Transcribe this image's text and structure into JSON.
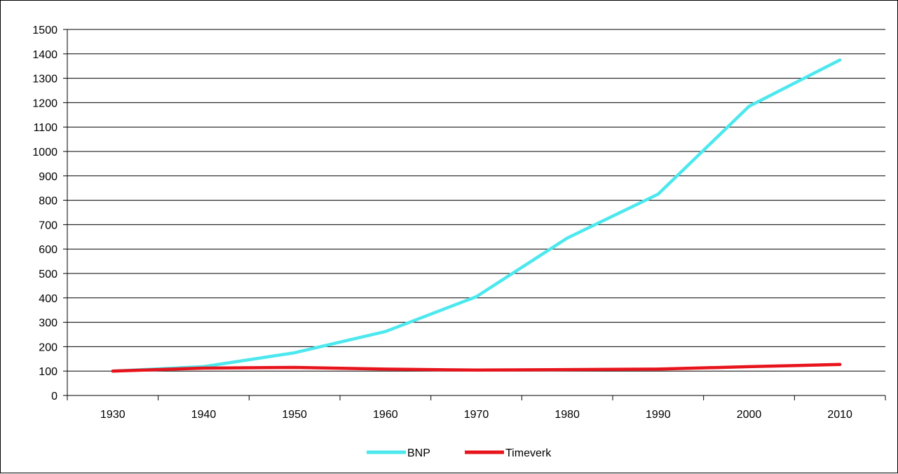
{
  "chart_data": {
    "type": "line",
    "title": "",
    "xlabel": "",
    "ylabel": "",
    "categories": [
      "1930",
      "1940",
      "1950",
      "1960",
      "1970",
      "1980",
      "1990",
      "2000",
      "2010"
    ],
    "ylim": [
      0,
      1500
    ],
    "yticks": [
      0,
      100,
      200,
      300,
      400,
      500,
      600,
      700,
      800,
      900,
      1000,
      1100,
      1200,
      1300,
      1400,
      1500
    ],
    "grid": true,
    "legend": "bottom",
    "series": [
      {
        "name": "BNP",
        "color": "#4de8ee",
        "values": [
          100,
          118,
          175,
          262,
          405,
          645,
          825,
          1185,
          1375
        ]
      },
      {
        "name": "Timeverk",
        "color": "#e8141c",
        "values": [
          100,
          112,
          115,
          108,
          104,
          106,
          108,
          118,
          127
        ]
      }
    ]
  }
}
